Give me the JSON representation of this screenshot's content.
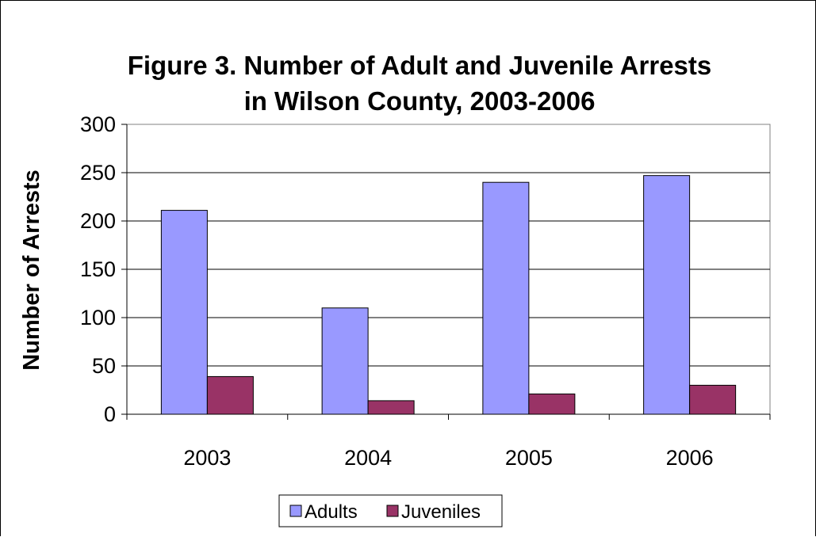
{
  "chart_data": {
    "type": "bar",
    "title": "Figure 3. Number of Adult and Juvenile Arrests in Wilson County, 2003-2006",
    "title_lines": [
      "Figure 3. Number of Adult and Juvenile Arrests",
      "in Wilson County, 2003-2006"
    ],
    "xlabel": "",
    "ylabel": "Number of Arrests",
    "categories": [
      "2003",
      "2004",
      "2005",
      "2006"
    ],
    "series": [
      {
        "name": "Adults",
        "color": "#9999ff",
        "values": [
          211,
          110,
          240,
          247
        ]
      },
      {
        "name": "Juveniles",
        "color": "#993366",
        "values": [
          39,
          14,
          21,
          30
        ]
      }
    ],
    "ylim": [
      0,
      300
    ],
    "yticks": [
      0,
      50,
      100,
      150,
      200,
      250,
      300
    ],
    "grid": true,
    "legend_position": "bottom"
  }
}
